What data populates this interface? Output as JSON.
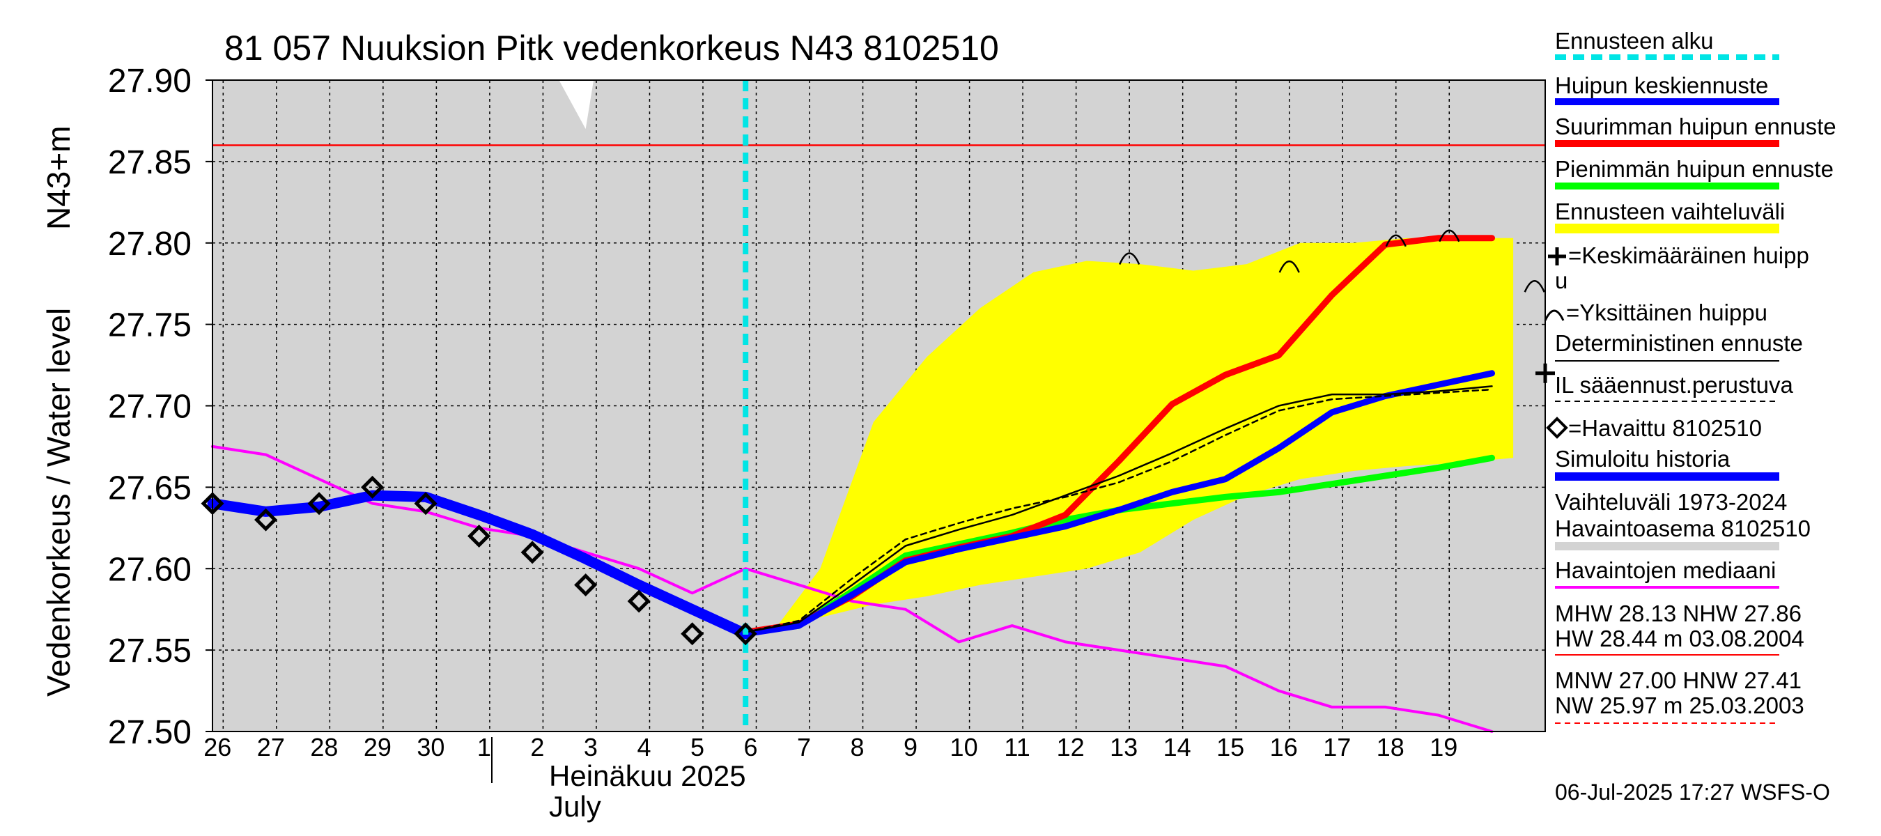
{
  "chart_data": {
    "type": "line",
    "title": "81 057 Nuuksion Pitk vedenkorkeus N43 8102510",
    "ylabel": "Vedenkorkeus / Water level",
    "yunit": "N43+m",
    "xlabel_month_fi": "Heinäkuu  2025",
    "xlabel_month_en": "July",
    "ylim": [
      27.5,
      27.9
    ],
    "yticks": [
      "27.90",
      "27.85",
      "27.80",
      "27.75",
      "27.70",
      "27.65",
      "27.60",
      "27.55",
      "27.50"
    ],
    "xlim": [
      -5.2,
      19.8
    ],
    "x_unit_note": "",
    "xticks": [
      {
        "day": "26",
        "pos": -5
      },
      {
        "day": "27",
        "pos": -4
      },
      {
        "day": "28",
        "pos": -3
      },
      {
        "day": "29",
        "pos": -2
      },
      {
        "day": "30",
        "pos": -1
      },
      {
        "day": "1",
        "pos": 0
      },
      {
        "day": "2",
        "pos": 1
      },
      {
        "day": "3",
        "pos": 2
      },
      {
        "day": "4",
        "pos": 3
      },
      {
        "day": "5",
        "pos": 4
      },
      {
        "day": "6",
        "pos": 5
      },
      {
        "day": "7",
        "pos": 6
      },
      {
        "day": "8",
        "pos": 7
      },
      {
        "day": "9",
        "pos": 8
      },
      {
        "day": "10",
        "pos": 9
      },
      {
        "day": "11",
        "pos": 10
      },
      {
        "day": "12",
        "pos": 11
      },
      {
        "day": "13",
        "pos": 12
      },
      {
        "day": "14",
        "pos": 13
      },
      {
        "day": "15",
        "pos": 14
      },
      {
        "day": "16",
        "pos": 15
      },
      {
        "day": "17",
        "pos": 16
      },
      {
        "day": "18",
        "pos": 17
      },
      {
        "day": "19",
        "pos": 18
      }
    ],
    "forecast_start": 4.8,
    "nhw_level": 27.86,
    "grid": true,
    "range_history_band": {
      "upper": [
        [
          -5.2,
          27.9
        ],
        [
          19.8,
          27.9
        ]
      ],
      "lower": [
        [
          -5.2,
          27.5
        ],
        [
          19.8,
          27.5
        ]
      ]
    },
    "forecast_band": {
      "upper": [
        [
          4.8,
          27.56
        ],
        [
          5.4,
          27.565
        ],
        [
          6.2,
          27.6
        ],
        [
          7.2,
          27.69
        ],
        [
          8.2,
          27.73
        ],
        [
          9.2,
          27.76
        ],
        [
          10.2,
          27.782
        ],
        [
          11.2,
          27.789
        ],
        [
          12.2,
          27.787
        ],
        [
          13.2,
          27.783
        ],
        [
          14.2,
          27.787
        ],
        [
          15.2,
          27.8
        ],
        [
          16.2,
          27.8
        ],
        [
          17.2,
          27.803
        ],
        [
          18.2,
          27.803
        ],
        [
          19.2,
          27.803
        ]
      ],
      "lower": [
        [
          19.2,
          27.668
        ],
        [
          18.2,
          27.665
        ],
        [
          17.2,
          27.663
        ],
        [
          16.2,
          27.66
        ],
        [
          15.2,
          27.655
        ],
        [
          14.2,
          27.645
        ],
        [
          13.2,
          27.63
        ],
        [
          12.2,
          27.61
        ],
        [
          11.2,
          27.6
        ],
        [
          10.2,
          27.595
        ],
        [
          9.2,
          27.59
        ],
        [
          8.2,
          27.583
        ],
        [
          7.2,
          27.578
        ],
        [
          6.2,
          27.57
        ],
        [
          5.4,
          27.565
        ],
        [
          4.8,
          27.56
        ]
      ]
    },
    "series": [
      {
        "name": "Havaintojen mediaani",
        "role": "median",
        "color": "#ff00ff",
        "points": [
          [
            -5.2,
            27.675
          ],
          [
            -4.2,
            27.67
          ],
          [
            -3.2,
            27.655
          ],
          [
            -2.2,
            27.64
          ],
          [
            -1.2,
            27.635
          ],
          [
            -0.2,
            27.625
          ],
          [
            0.8,
            27.62
          ],
          [
            1.8,
            27.61
          ],
          [
            2.8,
            27.6
          ],
          [
            3.8,
            27.585
          ],
          [
            4.8,
            27.6
          ],
          [
            5.8,
            27.59
          ],
          [
            6.8,
            27.58
          ],
          [
            7.8,
            27.575
          ],
          [
            8.8,
            27.555
          ],
          [
            9.8,
            27.565
          ],
          [
            10.8,
            27.555
          ],
          [
            11.8,
            27.55
          ],
          [
            12.8,
            27.545
          ],
          [
            13.8,
            27.54
          ],
          [
            14.8,
            27.525
          ],
          [
            15.8,
            27.515
          ],
          [
            16.8,
            27.515
          ],
          [
            17.8,
            27.51
          ],
          [
            18.8,
            27.5
          ]
        ]
      },
      {
        "name": "Simuloitu historia",
        "role": "simulated",
        "color": "#0000ff",
        "points": [
          [
            -5.2,
            27.64
          ],
          [
            -4.2,
            27.635
          ],
          [
            -3.2,
            27.638
          ],
          [
            -2.2,
            27.645
          ],
          [
            -1.2,
            27.644
          ],
          [
            -0.2,
            27.633
          ],
          [
            0.8,
            27.621
          ],
          [
            1.8,
            27.606
          ],
          [
            2.8,
            27.59
          ],
          [
            3.8,
            27.575
          ],
          [
            4.8,
            27.56
          ]
        ]
      },
      {
        "name": "Pienimmän huipun ennuste",
        "role": "min",
        "color": "#00ff00",
        "points": [
          [
            4.8,
            27.561
          ],
          [
            5.8,
            27.565
          ],
          [
            6.8,
            27.586
          ],
          [
            7.8,
            27.608
          ],
          [
            8.8,
            27.615
          ],
          [
            9.8,
            27.622
          ],
          [
            10.8,
            27.63
          ],
          [
            11.8,
            27.636
          ],
          [
            12.8,
            27.64
          ],
          [
            13.8,
            27.644
          ],
          [
            14.8,
            27.647
          ],
          [
            15.8,
            27.652
          ],
          [
            16.8,
            27.657
          ],
          [
            17.8,
            27.662
          ],
          [
            18.8,
            27.668
          ]
        ]
      },
      {
        "name": "Suurimman huipun ennuste",
        "role": "max",
        "color": "#ff0000",
        "points": [
          [
            4.8,
            27.561
          ],
          [
            5.8,
            27.566
          ],
          [
            6.8,
            27.583
          ],
          [
            7.8,
            27.605
          ],
          [
            8.8,
            27.613
          ],
          [
            9.8,
            27.62
          ],
          [
            10.8,
            27.633
          ],
          [
            11.8,
            27.666
          ],
          [
            12.8,
            27.701
          ],
          [
            13.8,
            27.719
          ],
          [
            14.8,
            27.731
          ],
          [
            15.8,
            27.768
          ],
          [
            16.8,
            27.799
          ],
          [
            17.8,
            27.803
          ],
          [
            18.8,
            27.803
          ]
        ]
      },
      {
        "name": "Huipun keskiennuste",
        "role": "mean",
        "color": "#0000ff",
        "points": [
          [
            4.8,
            27.56
          ],
          [
            5.8,
            27.565
          ],
          [
            6.8,
            27.584
          ],
          [
            7.8,
            27.604
          ],
          [
            8.8,
            27.612
          ],
          [
            9.8,
            27.619
          ],
          [
            10.8,
            27.626
          ],
          [
            11.8,
            27.636
          ],
          [
            12.8,
            27.647
          ],
          [
            13.8,
            27.655
          ],
          [
            14.8,
            27.674
          ],
          [
            15.8,
            27.696
          ],
          [
            16.8,
            27.706
          ],
          [
            17.8,
            27.713
          ],
          [
            18.8,
            27.72
          ]
        ]
      },
      {
        "name": "Deterministinen ennuste",
        "role": "det",
        "color": "#000000",
        "points": [
          [
            4.8,
            27.561
          ],
          [
            5.8,
            27.567
          ],
          [
            6.8,
            27.59
          ],
          [
            7.8,
            27.614
          ],
          [
            8.8,
            27.624
          ],
          [
            9.8,
            27.633
          ],
          [
            10.8,
            27.645
          ],
          [
            11.8,
            27.657
          ],
          [
            12.8,
            27.671
          ],
          [
            13.8,
            27.686
          ],
          [
            14.8,
            27.7
          ],
          [
            15.8,
            27.707
          ],
          [
            16.8,
            27.707
          ],
          [
            17.8,
            27.709
          ],
          [
            18.8,
            27.712
          ]
        ]
      },
      {
        "name": "IL sääennust.perustuva",
        "role": "il",
        "color": "#000000",
        "points": [
          [
            4.8,
            27.561
          ],
          [
            5.8,
            27.568
          ],
          [
            6.8,
            27.594
          ],
          [
            7.8,
            27.618
          ],
          [
            8.8,
            27.628
          ],
          [
            9.8,
            27.637
          ],
          [
            10.8,
            27.644
          ],
          [
            11.8,
            27.653
          ],
          [
            12.8,
            27.666
          ],
          [
            13.8,
            27.682
          ],
          [
            14.8,
            27.697
          ],
          [
            15.8,
            27.704
          ],
          [
            16.8,
            27.706
          ],
          [
            17.8,
            27.708
          ],
          [
            18.8,
            27.71
          ]
        ]
      }
    ],
    "observed": {
      "name": "Havaittu 8102510",
      "points": [
        [
          -5.2,
          27.64
        ],
        [
          -4.2,
          27.63
        ],
        [
          -3.2,
          27.64
        ],
        [
          -2.2,
          27.65
        ],
        [
          -1.2,
          27.64
        ],
        [
          -0.2,
          27.62
        ],
        [
          0.8,
          27.61
        ],
        [
          1.8,
          27.59
        ],
        [
          2.8,
          27.58
        ],
        [
          3.8,
          27.56
        ],
        [
          4.8,
          27.56
        ]
      ]
    },
    "single_peaks": [
      [
        12.0,
        27.792
      ],
      [
        15.0,
        27.787
      ],
      [
        17.0,
        27.803
      ],
      [
        18.0,
        27.806
      ],
      [
        19.6,
        27.775
      ]
    ],
    "mean_peak": [
      19.8,
      27.72
    ]
  },
  "legend": {
    "forecast_start": "Ennusteen alku",
    "mean_forecast": "Huipun keskiennuste",
    "max_forecast": "Suurimman huipun ennuste",
    "min_forecast": "Pienimmän huipun ennuste",
    "forecast_range": "Ennusteen vaihteluväli",
    "mean_peak_a": "=Keskimääräinen huipp",
    "mean_peak_b": "u",
    "single_peak": "=Yksittäinen huippu",
    "deterministic": "Deterministinen ennuste",
    "il_based": "IL sääennust.perustuva",
    "observed": "=Havaittu 8102510",
    "simulated": "Simuloitu historia",
    "range_a": "Vaihteluväli 1973-2024",
    "range_b": " Havaintoasema 8102510",
    "median": "Havaintojen mediaani",
    "stats": {
      "mhw_line": "MHW  28.13 NHW  27.86",
      "hw_line": "HW  28.44 m 03.08.2004",
      "mnw_line": "MNW  27.00 HNW  27.41",
      "nw_line": "NW  25.97 m 25.03.2003"
    }
  },
  "footer_timestamp": "06-Jul-2025 17:27 WSFS-O",
  "colors": {
    "background_band": "#d3d3d3",
    "forecast_band": "#ffff00",
    "forecast_start": "#00e5e5",
    "nhw_line": "#ff0000",
    "mean": "#0000ff",
    "max": "#ff0000",
    "min": "#00ff00",
    "median": "#ff00ff",
    "simulated": "#0000ff"
  }
}
